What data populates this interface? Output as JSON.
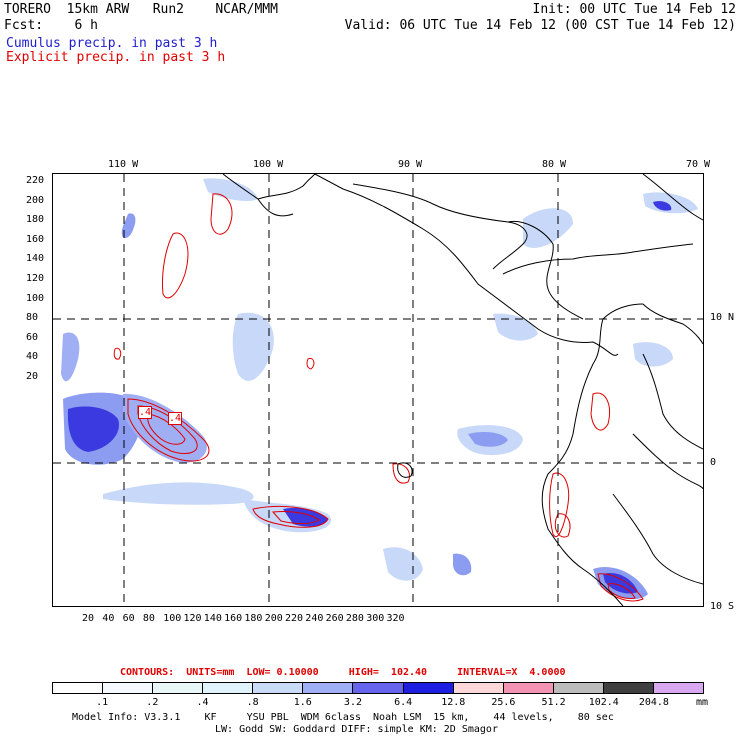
{
  "header": {
    "line1_left": "TORERO  15km ARW   Run2    NCAR/MMM",
    "line1_right": "Init: 00 UTC Tue 14 Feb 12",
    "line2_left": "Fcst:    6 h",
    "line2_right": "Valid: 06 UTC Tue 14 Feb 12 (00 CST Tue 14 Feb 12)",
    "legend_cumulus": "Cumulus precip. in past 3 h",
    "legend_explicit": "Explicit precip. in past 3 h"
  },
  "map": {
    "lon_labels": [
      "110 W",
      "100 W",
      "90 W",
      "80 W",
      "70 W"
    ],
    "lat_labels": [
      "10 N",
      "0",
      "10 S"
    ],
    "y_ticks": [
      "220",
      "200",
      "180",
      "160",
      "140",
      "120",
      "100",
      "80",
      "60",
      "40",
      "20"
    ],
    "x_ticks": [
      "20",
      "40",
      "60",
      "80",
      "100",
      "120",
      "140",
      "160",
      "180",
      "200",
      "220",
      "240",
      "260",
      "280",
      "300",
      "320"
    ],
    "contour_labels": [
      ".4",
      ".4"
    ],
    "colors": {
      "cumulus_light": "#c8d8f8",
      "cumulus_mid": "#8c9cf0",
      "cumulus_dark": "#3a3ae0",
      "explicit_contour": "#e00000",
      "coastline": "#000000"
    }
  },
  "contours_info": "CONTOURS:  UNITS=mm  LOW= 0.10000     HIGH=  102.40     INTERVAL=X  4.0000",
  "colorbar": {
    "labels": [
      ".1",
      ".2",
      ".4",
      ".8",
      "1.6",
      "3.2",
      "6.4",
      "12.8",
      "25.6",
      "51.2",
      "102.4",
      "204.8"
    ],
    "unit": "mm",
    "colors": [
      "#ffffff",
      "#f4f8ff",
      "#e8f8f8",
      "#e0f4fc",
      "#c8dcf8",
      "#a0aef4",
      "#6464ec",
      "#1e1ee0",
      "#fcd8d8",
      "#f494b4",
      "#bcbcbc",
      "#404040",
      "#d8a8f0"
    ]
  },
  "footer": {
    "line1": "Model Info: V3.3.1    KF     YSU PBL  WDM 6class  Noah LSM  15 km,    44 levels,    80 sec",
    "line2": "LW: Godd SW: Goddard DIFF: simple KM: 2D Smagor"
  }
}
